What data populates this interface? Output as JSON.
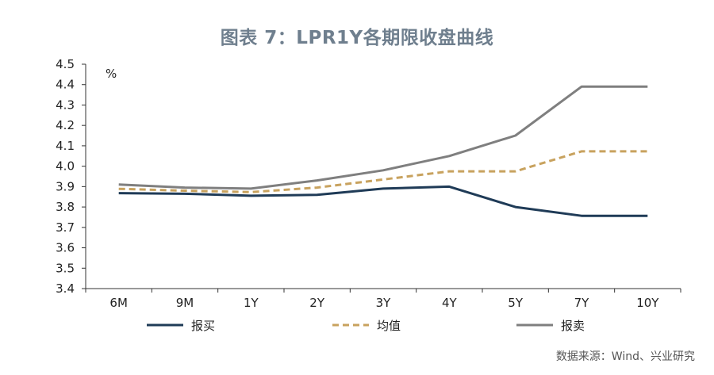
{
  "title": "图表 7：LPR1Y各期限收盘曲线",
  "source": "数据来源：Wind、兴业研究",
  "chart_data": {
    "type": "line",
    "title": "图表 7：LPR1Y各期限收盘曲线",
    "unit": "%",
    "categories": [
      "6M",
      "9M",
      "1Y",
      "2Y",
      "3Y",
      "4Y",
      "5Y",
      "7Y",
      "10Y"
    ],
    "ylim": [
      3.4,
      4.5
    ],
    "yticks": [
      "3.4",
      "3.5",
      "3.6",
      "3.7",
      "3.8",
      "3.9",
      "4.0",
      "4.1",
      "4.2",
      "4.3",
      "4.4",
      "4.5"
    ],
    "grid": false,
    "legend": "bottom",
    "series": [
      {
        "name": "报买",
        "color": "#1f3b57",
        "dash": "solid",
        "values": [
          3.868,
          3.865,
          3.855,
          3.86,
          3.89,
          3.9,
          3.8,
          3.757,
          3.757
        ]
      },
      {
        "name": "均值",
        "color": "#c8a25e",
        "dash": "dashed",
        "values": [
          3.889,
          3.88,
          3.873,
          3.895,
          3.935,
          3.975,
          3.975,
          4.073,
          4.073
        ]
      },
      {
        "name": "报卖",
        "color": "#7f7f7f",
        "dash": "solid",
        "values": [
          3.91,
          3.895,
          3.89,
          3.93,
          3.98,
          4.05,
          4.15,
          4.39,
          4.39
        ]
      }
    ]
  }
}
